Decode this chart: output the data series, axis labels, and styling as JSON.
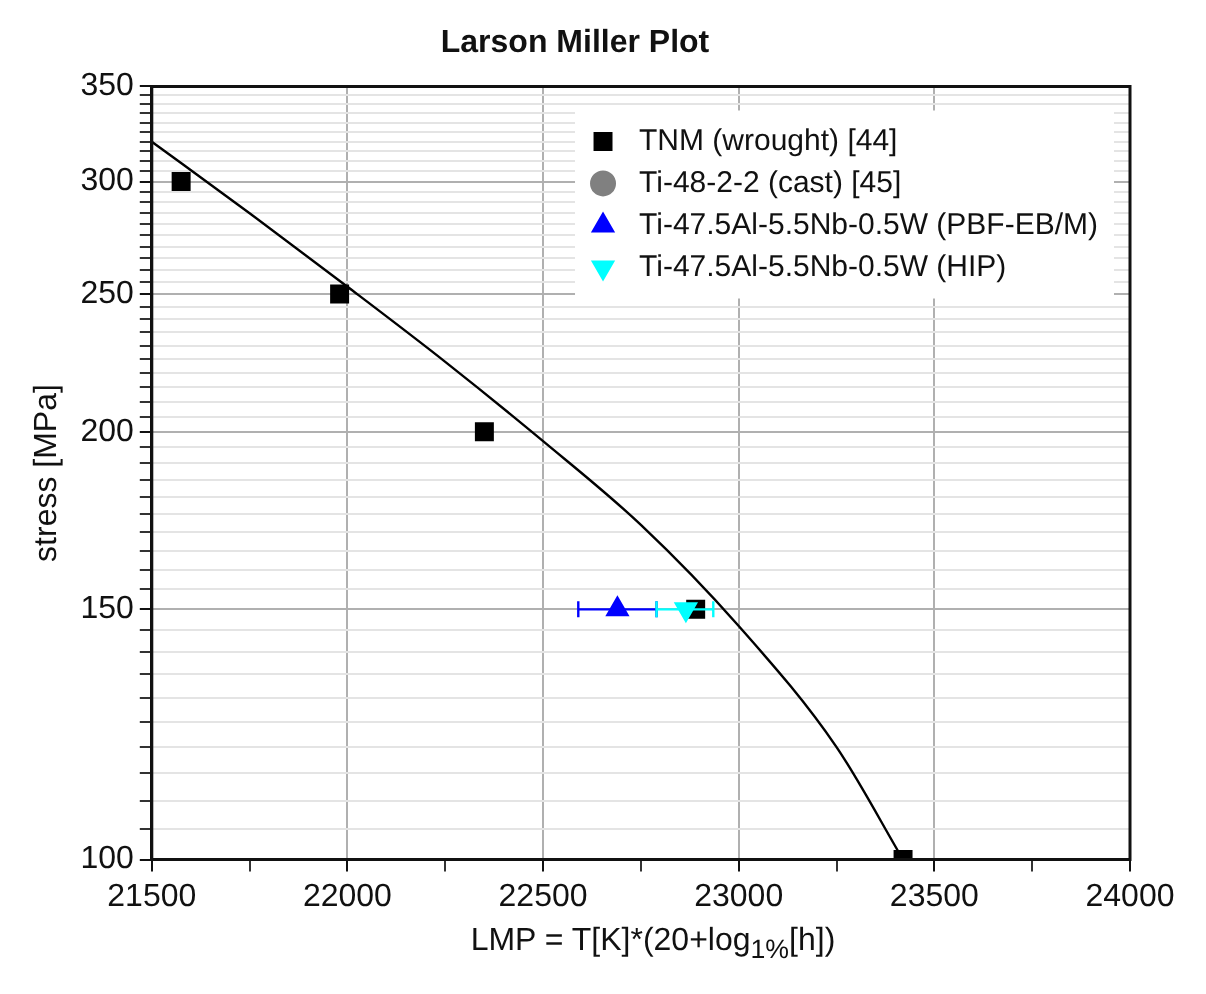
{
  "chart_data": {
    "type": "scatter",
    "title": "Larson Miller Plot",
    "xlabel": "LMP = T[K]*(20+log$_{1%}$[h])",
    "ylabel": "stress [MPa]",
    "log": "y",
    "grid": true,
    "legend": "top right",
    "xlim": [
      21500,
      24000
    ],
    "xticks": [
      21500,
      {
        "value": 21750,
        "label": null
      },
      22000,
      {
        "value": 22250,
        "label": null
      },
      22500,
      {
        "value": 22750,
        "label": null
      },
      23000,
      {
        "value": 23250,
        "label": null
      },
      23500,
      {
        "value": 23750,
        "label": null
      },
      24000
    ],
    "ylim": [
      100,
      350
    ],
    "yticks": [
      100,
      {
        "value": 105,
        "label": null
      },
      {
        "value": 110,
        "label": null
      },
      {
        "value": 115,
        "label": null
      },
      {
        "value": 120,
        "label": null
      },
      {
        "value": 125,
        "label": null
      },
      {
        "value": 130,
        "label": null
      },
      {
        "value": 135,
        "label": null
      },
      {
        "value": 140,
        "label": null
      },
      {
        "value": 145,
        "label": null
      },
      150,
      {
        "value": 155,
        "label": null
      },
      {
        "value": 160,
        "label": null
      },
      {
        "value": 165,
        "label": null
      },
      {
        "value": 170,
        "label": null
      },
      {
        "value": 175,
        "label": null
      },
      {
        "value": 180,
        "label": null
      },
      {
        "value": 185,
        "label": null
      },
      {
        "value": 190,
        "label": null
      },
      {
        "value": 195,
        "label": null
      },
      200,
      {
        "value": 205,
        "label": null
      },
      {
        "value": 210,
        "label": null
      },
      {
        "value": 215,
        "label": null
      },
      {
        "value": 220,
        "label": null
      },
      {
        "value": 225,
        "label": null
      },
      {
        "value": 230,
        "label": null
      },
      {
        "value": 235,
        "label": null
      },
      {
        "value": 240,
        "label": null
      },
      {
        "value": 245,
        "label": null
      },
      250,
      {
        "value": 255,
        "label": null
      },
      {
        "value": 260,
        "label": null
      },
      {
        "value": 265,
        "label": null
      },
      {
        "value": 270,
        "label": null
      },
      {
        "value": 275,
        "label": null
      },
      {
        "value": 280,
        "label": null
      },
      {
        "value": 285,
        "label": null
      },
      {
        "value": 290,
        "label": null
      },
      {
        "value": 295,
        "label": null
      },
      300,
      {
        "value": 305,
        "label": null
      },
      {
        "value": 310,
        "label": null
      },
      {
        "value": 315,
        "label": null
      },
      {
        "value": 320,
        "label": null
      },
      {
        "value": 325,
        "label": null
      },
      {
        "value": 330,
        "label": null
      },
      {
        "value": 335,
        "label": null
      },
      {
        "value": 340,
        "label": null
      },
      {
        "value": 345,
        "label": null
      },
      350
    ],
    "series": [
      {
        "type": "line",
        "color": "#000000",
        "marker": "none",
        "x": [
          21500,
          21750,
          22000,
          22250,
          22500,
          22750,
          23000,
          23250,
          23420
        ],
        "values": [
          320,
          285,
          253,
          224,
          197,
          172,
          146,
          120,
          100
        ]
      },
      {
        "name": "TNM (wrought) [44]",
        "color": "#000000",
        "marker": "square",
        "x": [
          21575,
          21980,
          22350,
          22890,
          23420
        ],
        "values": [
          300,
          250,
          200,
          150,
          100
        ]
      },
      {
        "name": "Ti-48-2-2 (cast) [45]",
        "color": "#808080",
        "marker": "circle"
      },
      {
        "name": "Ti-47.5Al-5.5Nb-0.5W (PBF-EB/M)",
        "color": "#0000ff",
        "marker": "triangle",
        "x": [
          22690
        ],
        "values": [
          150
        ],
        "xerrors": [
          [
            22590,
            22790
          ]
        ]
      },
      {
        "name": "Ti-47.5Al-5.5Nb-0.5W (HIP)",
        "color": "#00ffff",
        "marker": "triangle-down",
        "x": [
          22865
        ],
        "values": [
          150
        ],
        "xerrors": [
          [
            22790,
            22935
          ]
        ]
      }
    ]
  }
}
